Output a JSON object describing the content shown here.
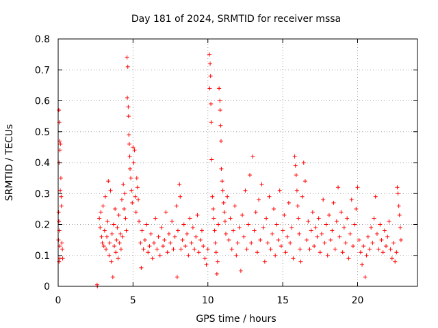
{
  "chart_data": {
    "type": "scatter",
    "title": "Day 181 of 2024, SRMTID for receiver mssa",
    "xlabel": "GPS time / hours",
    "ylabel": "SRMTID / TECUs",
    "xlim": [
      0,
      24
    ],
    "ylim": [
      0,
      0.8
    ],
    "xticks": [
      0,
      5,
      10,
      15,
      20
    ],
    "xtick_labels": [
      "0",
      "5",
      "10",
      "15",
      "20"
    ],
    "yticks": [
      0,
      0.1,
      0.2,
      0.3,
      0.4,
      0.5,
      0.6,
      0.7,
      0.8
    ],
    "ytick_labels": [
      "0",
      "0.1",
      "0.2",
      "0.3",
      "0.4",
      "0.5",
      "0.6",
      "0.7",
      "0.8"
    ],
    "grid": true,
    "marker": "+",
    "color": "#ff0000",
    "series": [
      {
        "name": "SRMTID",
        "points": [
          [
            0.05,
            0.57
          ],
          [
            0.08,
            0.53
          ],
          [
            0.1,
            0.47
          ],
          [
            0.12,
            0.44
          ],
          [
            0.06,
            0.4
          ],
          [
            0.15,
            0.46
          ],
          [
            0.03,
            0.24
          ],
          [
            0.05,
            0.21
          ],
          [
            0.08,
            0.18
          ],
          [
            0.1,
            0.13
          ],
          [
            0.12,
            0.09
          ],
          [
            0.06,
            0.08
          ],
          [
            0.2,
            0.29
          ],
          [
            0.22,
            0.26
          ],
          [
            0.25,
            0.14
          ],
          [
            0.28,
            0.12
          ],
          [
            0.3,
            0.09
          ],
          [
            0.18,
            0.35
          ],
          [
            0.14,
            0.31
          ],
          [
            0.02,
            0.15
          ],
          [
            2.6,
            0.005
          ],
          [
            2.62,
            0.0
          ],
          [
            2.75,
            0.22
          ],
          [
            2.8,
            0.19
          ],
          [
            2.85,
            0.24
          ],
          [
            2.9,
            0.16
          ],
          [
            2.95,
            0.14
          ],
          [
            3.0,
            0.26
          ],
          [
            3.05,
            0.13
          ],
          [
            3.1,
            0.18
          ],
          [
            3.15,
            0.29
          ],
          [
            3.2,
            0.12
          ],
          [
            3.25,
            0.16
          ],
          [
            3.3,
            0.21
          ],
          [
            3.35,
            0.34
          ],
          [
            3.4,
            0.1
          ],
          [
            3.45,
            0.14
          ],
          [
            3.5,
            0.31
          ],
          [
            3.55,
            0.08
          ],
          [
            3.6,
            0.17
          ],
          [
            3.65,
            0.03
          ],
          [
            3.7,
            0.2
          ],
          [
            3.75,
            0.13
          ],
          [
            3.8,
            0.25
          ],
          [
            3.85,
            0.11
          ],
          [
            3.9,
            0.15
          ],
          [
            3.95,
            0.19
          ],
          [
            4.0,
            0.09
          ],
          [
            4.05,
            0.23
          ],
          [
            4.1,
            0.14
          ],
          [
            4.15,
            0.17
          ],
          [
            4.2,
            0.12
          ],
          [
            4.25,
            0.28
          ],
          [
            4.3,
            0.16
          ],
          [
            4.35,
            0.33
          ],
          [
            4.4,
            0.25
          ],
          [
            4.45,
            0.3
          ],
          [
            4.5,
            0.22
          ],
          [
            4.55,
            0.18
          ],
          [
            4.6,
            0.74
          ],
          [
            4.65,
            0.71
          ],
          [
            4.62,
            0.61
          ],
          [
            4.68,
            0.58
          ],
          [
            4.7,
            0.55
          ],
          [
            4.72,
            0.49
          ],
          [
            4.75,
            0.46
          ],
          [
            4.78,
            0.42
          ],
          [
            4.8,
            0.38
          ],
          [
            4.85,
            0.35
          ],
          [
            4.9,
            0.31
          ],
          [
            4.95,
            0.27
          ],
          [
            5.0,
            0.45
          ],
          [
            5.05,
            0.4
          ],
          [
            5.1,
            0.44
          ],
          [
            5.15,
            0.29
          ],
          [
            5.2,
            0.24
          ],
          [
            5.25,
            0.35
          ],
          [
            5.3,
            0.32
          ],
          [
            5.35,
            0.28
          ],
          [
            5.4,
            0.21
          ],
          [
            5.5,
            0.14
          ],
          [
            5.55,
            0.06
          ],
          [
            5.6,
            0.18
          ],
          [
            5.7,
            0.12
          ],
          [
            5.8,
            0.15
          ],
          [
            5.9,
            0.2
          ],
          [
            6.0,
            0.11
          ],
          [
            6.1,
            0.13
          ],
          [
            6.2,
            0.17
          ],
          [
            6.3,
            0.09
          ],
          [
            6.4,
            0.14
          ],
          [
            6.5,
            0.22
          ],
          [
            6.6,
            0.12
          ],
          [
            6.7,
            0.16
          ],
          [
            6.8,
            0.1
          ],
          [
            6.9,
            0.19
          ],
          [
            7.0,
            0.13
          ],
          [
            7.1,
            0.15
          ],
          [
            7.2,
            0.24
          ],
          [
            7.3,
            0.11
          ],
          [
            7.4,
            0.17
          ],
          [
            7.5,
            0.14
          ],
          [
            7.6,
            0.21
          ],
          [
            7.7,
            0.12
          ],
          [
            7.8,
            0.16
          ],
          [
            7.9,
            0.26
          ],
          [
            7.95,
            0.03
          ],
          [
            8.0,
            0.18
          ],
          [
            8.1,
            0.33
          ],
          [
            8.15,
            0.29
          ],
          [
            8.2,
            0.12
          ],
          [
            8.3,
            0.15
          ],
          [
            8.4,
            0.2
          ],
          [
            8.5,
            0.13
          ],
          [
            8.6,
            0.17
          ],
          [
            8.7,
            0.1
          ],
          [
            8.8,
            0.22
          ],
          [
            8.9,
            0.14
          ],
          [
            9.0,
            0.19
          ],
          [
            9.1,
            0.12
          ],
          [
            9.2,
            0.16
          ],
          [
            9.3,
            0.23
          ],
          [
            9.4,
            0.11
          ],
          [
            9.5,
            0.15
          ],
          [
            9.6,
            0.18
          ],
          [
            9.7,
            0.13
          ],
          [
            9.8,
            0.09
          ],
          [
            9.9,
            0.07
          ],
          [
            10.0,
            0.12
          ],
          [
            10.1,
            0.75
          ],
          [
            10.15,
            0.72
          ],
          [
            10.18,
            0.68
          ],
          [
            10.12,
            0.64
          ],
          [
            10.2,
            0.59
          ],
          [
            10.22,
            0.53
          ],
          [
            10.25,
            0.41
          ],
          [
            10.3,
            0.29
          ],
          [
            10.35,
            0.25
          ],
          [
            10.4,
            0.22
          ],
          [
            10.45,
            0.18
          ],
          [
            10.5,
            0.14
          ],
          [
            10.55,
            0.11
          ],
          [
            10.6,
            0.04
          ],
          [
            10.65,
            0.08
          ],
          [
            10.7,
            0.2
          ],
          [
            10.75,
            0.64
          ],
          [
            10.8,
            0.6
          ],
          [
            10.82,
            0.57
          ],
          [
            10.85,
            0.52
          ],
          [
            10.88,
            0.47
          ],
          [
            10.9,
            0.38
          ],
          [
            10.95,
            0.34
          ],
          [
            11.0,
            0.31
          ],
          [
            11.05,
            0.27
          ],
          [
            11.1,
            0.24
          ],
          [
            11.15,
            0.21
          ],
          [
            11.2,
            0.17
          ],
          [
            11.3,
            0.29
          ],
          [
            11.4,
            0.15
          ],
          [
            11.5,
            0.22
          ],
          [
            11.6,
            0.12
          ],
          [
            11.7,
            0.18
          ],
          [
            11.8,
            0.26
          ],
          [
            11.9,
            0.1
          ],
          [
            12.0,
            0.14
          ],
          [
            12.1,
            0.19
          ],
          [
            12.2,
            0.05
          ],
          [
            12.3,
            0.23
          ],
          [
            12.4,
            0.16
          ],
          [
            12.5,
            0.31
          ],
          [
            12.6,
            0.12
          ],
          [
            12.7,
            0.2
          ],
          [
            12.8,
            0.36
          ],
          [
            12.9,
            0.14
          ],
          [
            13.0,
            0.42
          ],
          [
            13.1,
            0.18
          ],
          [
            13.2,
            0.24
          ],
          [
            13.3,
            0.11
          ],
          [
            13.4,
            0.28
          ],
          [
            13.5,
            0.15
          ],
          [
            13.6,
            0.33
          ],
          [
            13.7,
            0.19
          ],
          [
            13.8,
            0.08
          ],
          [
            13.9,
            0.22
          ],
          [
            14.0,
            0.14
          ],
          [
            14.1,
            0.29
          ],
          [
            14.2,
            0.12
          ],
          [
            14.3,
            0.17
          ],
          [
            14.4,
            0.25
          ],
          [
            14.5,
            0.1
          ],
          [
            14.6,
            0.2
          ],
          [
            14.7,
            0.15
          ],
          [
            14.8,
            0.31
          ],
          [
            14.9,
            0.13
          ],
          [
            15.0,
            0.18
          ],
          [
            15.1,
            0.23
          ],
          [
            15.2,
            0.11
          ],
          [
            15.3,
            0.16
          ],
          [
            15.4,
            0.27
          ],
          [
            15.5,
            0.14
          ],
          [
            15.6,
            0.19
          ],
          [
            15.7,
            0.09
          ],
          [
            15.8,
            0.42
          ],
          [
            15.85,
            0.39
          ],
          [
            15.9,
            0.36
          ],
          [
            15.95,
            0.31
          ],
          [
            16.0,
            0.26
          ],
          [
            16.05,
            0.22
          ],
          [
            16.1,
            0.17
          ],
          [
            16.15,
            0.12
          ],
          [
            16.2,
            0.08
          ],
          [
            16.3,
            0.29
          ],
          [
            16.4,
            0.4
          ],
          [
            16.5,
            0.34
          ],
          [
            16.6,
            0.15
          ],
          [
            16.7,
            0.21
          ],
          [
            16.8,
            0.12
          ],
          [
            16.9,
            0.18
          ],
          [
            17.0,
            0.24
          ],
          [
            17.1,
            0.13
          ],
          [
            17.2,
            0.19
          ],
          [
            17.3,
            0.16
          ],
          [
            17.4,
            0.22
          ],
          [
            17.5,
            0.11
          ],
          [
            17.6,
            0.17
          ],
          [
            17.7,
            0.28
          ],
          [
            17.8,
            0.14
          ],
          [
            17.9,
            0.2
          ],
          [
            18.0,
            0.1
          ],
          [
            18.1,
            0.23
          ],
          [
            18.2,
            0.15
          ],
          [
            18.3,
            0.18
          ],
          [
            18.4,
            0.27
          ],
          [
            18.5,
            0.12
          ],
          [
            18.6,
            0.21
          ],
          [
            18.7,
            0.32
          ],
          [
            18.8,
            0.16
          ],
          [
            18.9,
            0.24
          ],
          [
            19.0,
            0.11
          ],
          [
            19.1,
            0.19
          ],
          [
            19.2,
            0.14
          ],
          [
            19.3,
            0.22
          ],
          [
            19.4,
            0.09
          ],
          [
            19.5,
            0.17
          ],
          [
            19.6,
            0.28
          ],
          [
            19.7,
            0.13
          ],
          [
            19.8,
            0.2
          ],
          [
            19.9,
            0.25
          ],
          [
            20.0,
            0.32
          ],
          [
            20.1,
            0.15
          ],
          [
            20.2,
            0.11
          ],
          [
            20.3,
            0.07
          ],
          [
            20.4,
            0.13
          ],
          [
            20.5,
            0.03
          ],
          [
            20.6,
            0.1
          ],
          [
            20.7,
            0.16
          ],
          [
            20.8,
            0.12
          ],
          [
            20.9,
            0.19
          ],
          [
            21.0,
            0.14
          ],
          [
            21.1,
            0.22
          ],
          [
            21.2,
            0.29
          ],
          [
            21.3,
            0.17
          ],
          [
            21.4,
            0.12
          ],
          [
            21.5,
            0.2
          ],
          [
            21.6,
            0.15
          ],
          [
            21.7,
            0.11
          ],
          [
            21.8,
            0.18
          ],
          [
            21.9,
            0.13
          ],
          [
            22.0,
            0.16
          ],
          [
            22.1,
            0.21
          ],
          [
            22.2,
            0.12
          ],
          [
            22.3,
            0.09
          ],
          [
            22.4,
            0.14
          ],
          [
            22.5,
            0.08
          ],
          [
            22.6,
            0.11
          ],
          [
            22.65,
            0.32
          ],
          [
            22.7,
            0.3
          ],
          [
            22.75,
            0.26
          ],
          [
            22.8,
            0.23
          ],
          [
            22.85,
            0.19
          ],
          [
            22.9,
            0.15
          ]
        ]
      }
    ]
  }
}
